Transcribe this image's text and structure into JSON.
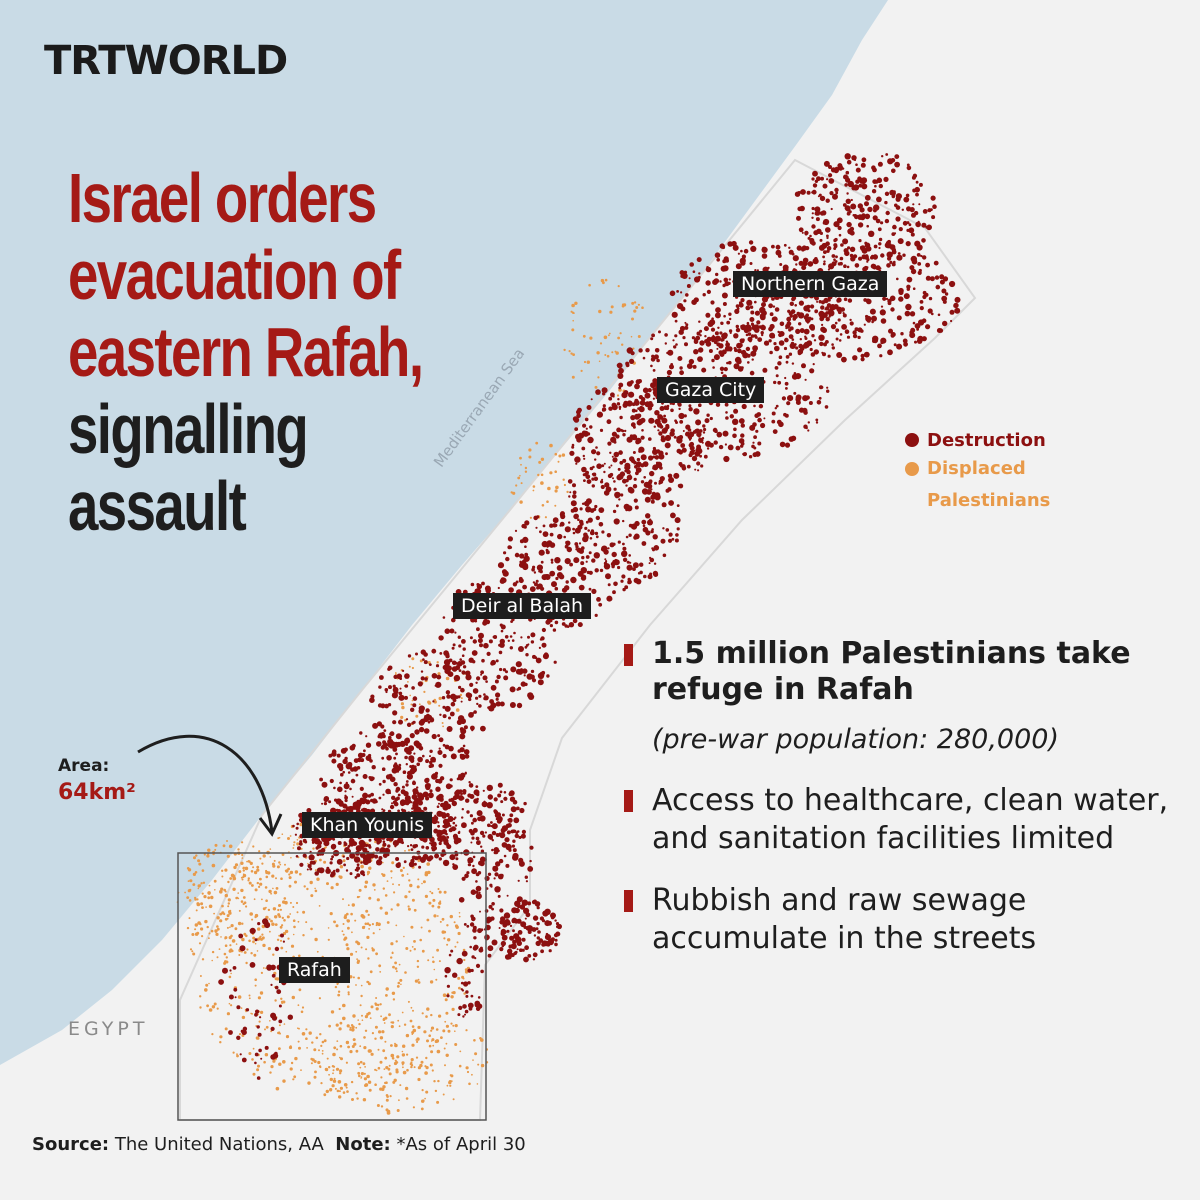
{
  "brand": "TRTWORLD",
  "headline": {
    "red_lines": [
      "Israel orders",
      "evacuation of",
      "eastern Rafah,"
    ],
    "dark_lines": [
      "signalling",
      "assault"
    ]
  },
  "places": {
    "northern_gaza": "Northern Gaza",
    "gaza_city": "Gaza City",
    "deir_al_balah": "Deir al Balah",
    "khan_younis": "Khan Younis",
    "rafah": "Rafah"
  },
  "sea_label": "Mediterranean Sea",
  "country_label": "EGYPT",
  "legend": {
    "destruction": "Destruction",
    "displaced": "Displaced Palestinians"
  },
  "area": {
    "label": "Area:",
    "value": "64km²"
  },
  "facts": {
    "fact1": "1.5 million Palestinians take refuge in Rafah",
    "fact1_sub": "(pre-war population: 280,000)",
    "fact2": "Access to healthcare, clean water, and sanitation facilities limited",
    "fact3": "Rubbish and raw sewage accumulate in the streets"
  },
  "footer": {
    "source_label": "Source:",
    "source_text": "The United Nations, AA",
    "note_label": "Note:",
    "note_text": "*As of April 30"
  },
  "colors": {
    "destruction": "#8c1010",
    "displaced": "#e89a4a",
    "sea": "#c9dbe6",
    "land": "#f2f2f2",
    "accent": "#a51a16"
  }
}
